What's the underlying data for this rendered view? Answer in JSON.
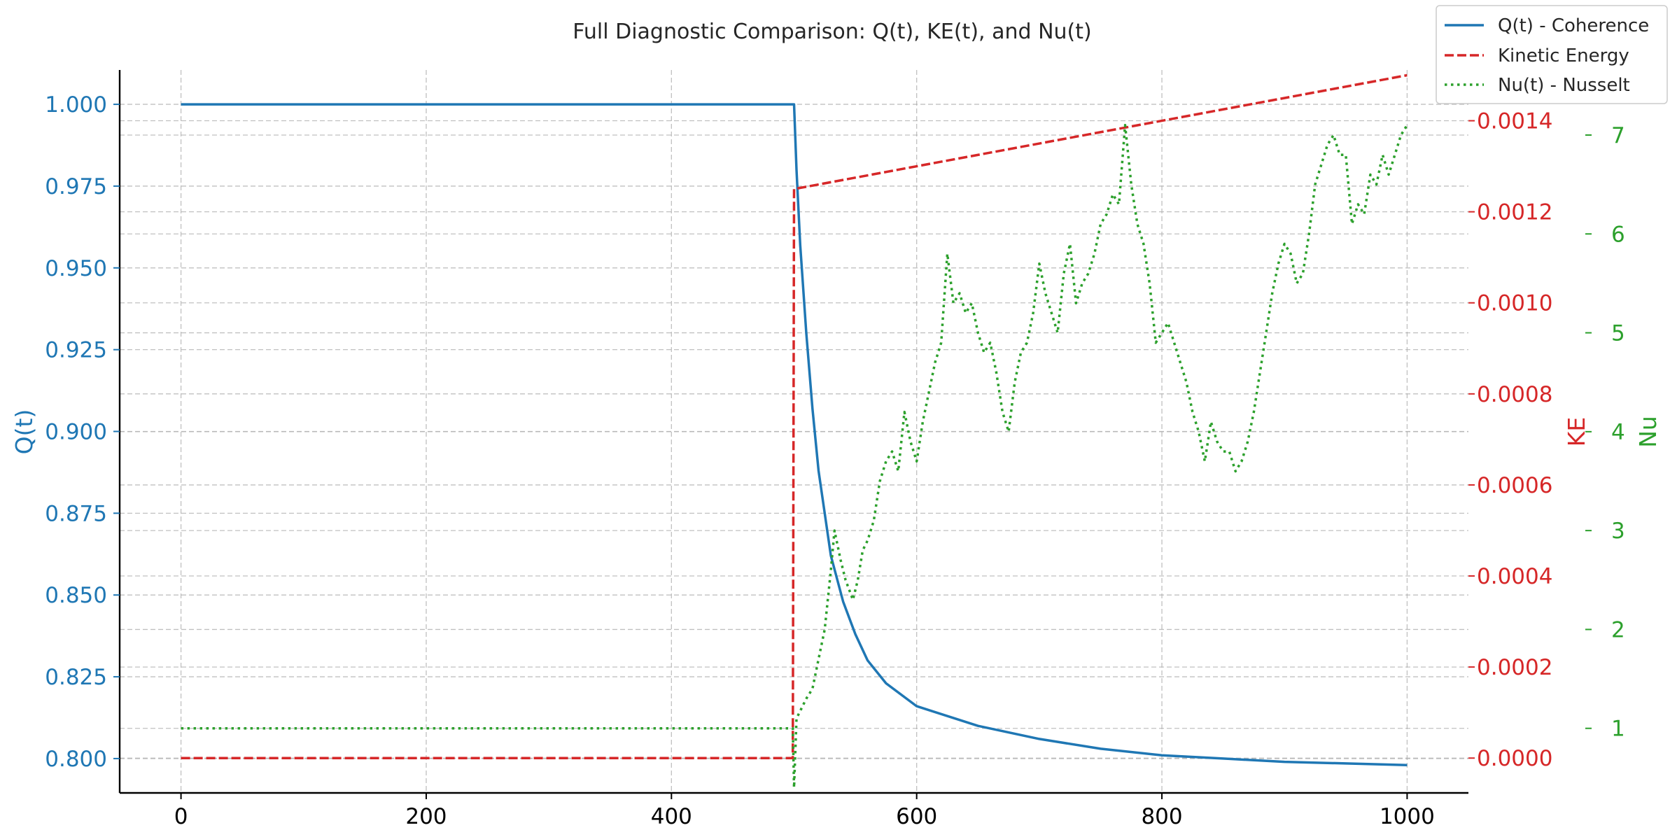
{
  "chart_data": {
    "type": "line",
    "title": "Full Diagnostic Comparison: Q(t), KE(t), and Nu(t)",
    "xlabel": "",
    "xlim": [
      -50,
      1050
    ],
    "x_ticks": [
      0,
      200,
      400,
      600,
      800,
      1000
    ],
    "axes": {
      "left": {
        "label": "Q(t)",
        "color": "#1f77b4",
        "ylim": [
          0.7895,
          1.0105
        ],
        "ticks": [
          "0.800",
          "0.825",
          "0.850",
          "0.875",
          "0.900",
          "0.925",
          "0.950",
          "0.975",
          "1.000"
        ]
      },
      "right": {
        "label": "KE",
        "color": "#d62728",
        "ylim": [
          -7.65e-05,
          0.0015115
        ],
        "ticks": [
          "0.0000",
          "0.0002",
          "0.0004",
          "0.0006",
          "0.0008",
          "0.0010",
          "0.0012",
          "0.0014"
        ]
      },
      "right2": {
        "label": "Nu",
        "color": "#2ca02c",
        "ylim": [
          0.347,
          7.658
        ],
        "ticks": [
          "1",
          "2",
          "3",
          "4",
          "5",
          "6",
          "7"
        ]
      }
    },
    "grid": true,
    "legend_position": "top-right",
    "series": [
      {
        "name": "Q(t) - Coherence",
        "axis": "left",
        "style": "solid",
        "color": "#1f77b4",
        "points": [
          [
            0,
            1.0
          ],
          [
            500,
            1.0
          ],
          [
            502,
            0.98
          ],
          [
            505,
            0.957
          ],
          [
            510,
            0.93
          ],
          [
            515,
            0.907
          ],
          [
            520,
            0.888
          ],
          [
            530,
            0.862
          ],
          [
            540,
            0.848
          ],
          [
            550,
            0.838
          ],
          [
            560,
            0.83
          ],
          [
            575,
            0.823
          ],
          [
            600,
            0.816
          ],
          [
            650,
            0.81
          ],
          [
            700,
            0.806
          ],
          [
            750,
            0.803
          ],
          [
            800,
            0.801
          ],
          [
            850,
            0.8
          ],
          [
            900,
            0.799
          ],
          [
            950,
            0.7985
          ],
          [
            1000,
            0.798
          ]
        ]
      },
      {
        "name": "Kinetic Energy",
        "axis": "right",
        "style": "dashed",
        "color": "#d62728",
        "points": [
          [
            0,
            0.0
          ],
          [
            499,
            0.0
          ],
          [
            500,
            0.00125
          ],
          [
            1000,
            0.0015
          ]
        ]
      },
      {
        "name": "Nu(t) - Nusselt",
        "axis": "right2",
        "style": "dotted",
        "color": "#2ca02c",
        "points": [
          [
            0,
            1.0
          ],
          [
            499,
            1.0
          ],
          [
            500,
            0.4
          ],
          [
            502,
            1.1
          ],
          [
            510,
            1.3
          ],
          [
            515,
            1.4
          ],
          [
            520,
            1.7
          ],
          [
            525,
            2.0
          ],
          [
            530,
            2.6
          ],
          [
            533,
            3.0
          ],
          [
            538,
            2.7
          ],
          [
            542,
            2.5
          ],
          [
            548,
            2.3
          ],
          [
            552,
            2.5
          ],
          [
            556,
            2.8
          ],
          [
            560,
            2.9
          ],
          [
            565,
            3.1
          ],
          [
            570,
            3.5
          ],
          [
            575,
            3.7
          ],
          [
            580,
            3.8
          ],
          [
            585,
            3.6
          ],
          [
            590,
            4.2
          ],
          [
            595,
            3.9
          ],
          [
            600,
            3.7
          ],
          [
            605,
            4.1
          ],
          [
            610,
            4.4
          ],
          [
            615,
            4.7
          ],
          [
            620,
            4.9
          ],
          [
            625,
            5.8
          ],
          [
            630,
            5.3
          ],
          [
            635,
            5.4
          ],
          [
            640,
            5.2
          ],
          [
            645,
            5.3
          ],
          [
            650,
            5.0
          ],
          [
            655,
            4.8
          ],
          [
            660,
            4.9
          ],
          [
            665,
            4.6
          ],
          [
            670,
            4.2
          ],
          [
            675,
            4.0
          ],
          [
            680,
            4.5
          ],
          [
            685,
            4.8
          ],
          [
            690,
            4.9
          ],
          [
            695,
            5.2
          ],
          [
            700,
            5.7
          ],
          [
            705,
            5.4
          ],
          [
            710,
            5.2
          ],
          [
            715,
            5.0
          ],
          [
            720,
            5.6
          ],
          [
            725,
            5.9
          ],
          [
            730,
            5.3
          ],
          [
            735,
            5.5
          ],
          [
            740,
            5.6
          ],
          [
            745,
            5.8
          ],
          [
            750,
            6.1
          ],
          [
            755,
            6.2
          ],
          [
            760,
            6.4
          ],
          [
            765,
            6.3
          ],
          [
            770,
            7.1
          ],
          [
            775,
            6.5
          ],
          [
            780,
            6.1
          ],
          [
            785,
            5.9
          ],
          [
            790,
            5.5
          ],
          [
            795,
            4.9
          ],
          [
            800,
            5.0
          ],
          [
            805,
            5.1
          ],
          [
            810,
            4.9
          ],
          [
            815,
            4.7
          ],
          [
            820,
            4.5
          ],
          [
            825,
            4.2
          ],
          [
            830,
            4.0
          ],
          [
            835,
            3.7
          ],
          [
            840,
            4.1
          ],
          [
            845,
            3.9
          ],
          [
            850,
            3.8
          ],
          [
            855,
            3.8
          ],
          [
            860,
            3.6
          ],
          [
            865,
            3.7
          ],
          [
            870,
            3.9
          ],
          [
            875,
            4.2
          ],
          [
            880,
            4.6
          ],
          [
            885,
            5.0
          ],
          [
            890,
            5.4
          ],
          [
            895,
            5.7
          ],
          [
            900,
            5.9
          ],
          [
            905,
            5.8
          ],
          [
            910,
            5.5
          ],
          [
            915,
            5.6
          ],
          [
            920,
            6.0
          ],
          [
            925,
            6.5
          ],
          [
            930,
            6.7
          ],
          [
            935,
            6.9
          ],
          [
            940,
            7.0
          ],
          [
            945,
            6.8
          ],
          [
            950,
            6.8
          ],
          [
            955,
            6.1
          ],
          [
            960,
            6.3
          ],
          [
            965,
            6.2
          ],
          [
            970,
            6.6
          ],
          [
            975,
            6.5
          ],
          [
            980,
            6.8
          ],
          [
            985,
            6.6
          ],
          [
            990,
            6.8
          ],
          [
            995,
            7.0
          ],
          [
            1000,
            7.1
          ]
        ]
      }
    ]
  }
}
